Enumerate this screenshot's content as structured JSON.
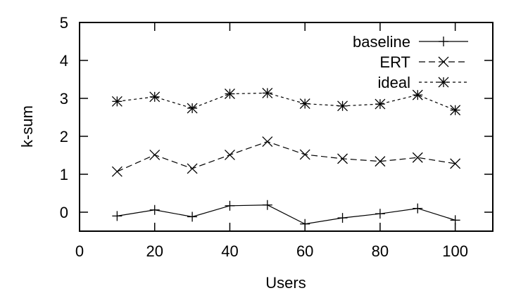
{
  "chart_data": {
    "type": "line",
    "title": "",
    "xlabel": "Users",
    "ylabel": "k-sum",
    "xlim": [
      0,
      110
    ],
    "ylim": [
      -0.5,
      5
    ],
    "xticks": [
      0,
      20,
      40,
      60,
      80,
      100
    ],
    "yticks": [
      0,
      1,
      2,
      3,
      4,
      5
    ],
    "grid": false,
    "legend_position": "top-right",
    "x": [
      10,
      20,
      30,
      40,
      50,
      60,
      70,
      80,
      90,
      100
    ],
    "series": [
      {
        "name": "baseline",
        "marker": "plus",
        "dash": "solid",
        "color": "#000000",
        "values": [
          -0.1,
          0.06,
          -0.12,
          0.17,
          0.19,
          -0.31,
          -0.15,
          -0.04,
          0.1,
          -0.21
        ]
      },
      {
        "name": "ERT",
        "marker": "cross",
        "dash": "long-dash",
        "color": "#000000",
        "values": [
          1.07,
          1.51,
          1.15,
          1.51,
          1.86,
          1.52,
          1.41,
          1.34,
          1.44,
          1.28
        ]
      },
      {
        "name": "ideal",
        "marker": "star",
        "dash": "short-dash",
        "color": "#000000",
        "values": [
          2.92,
          3.04,
          2.74,
          3.12,
          3.14,
          2.86,
          2.8,
          2.85,
          3.09,
          2.69
        ]
      }
    ]
  }
}
